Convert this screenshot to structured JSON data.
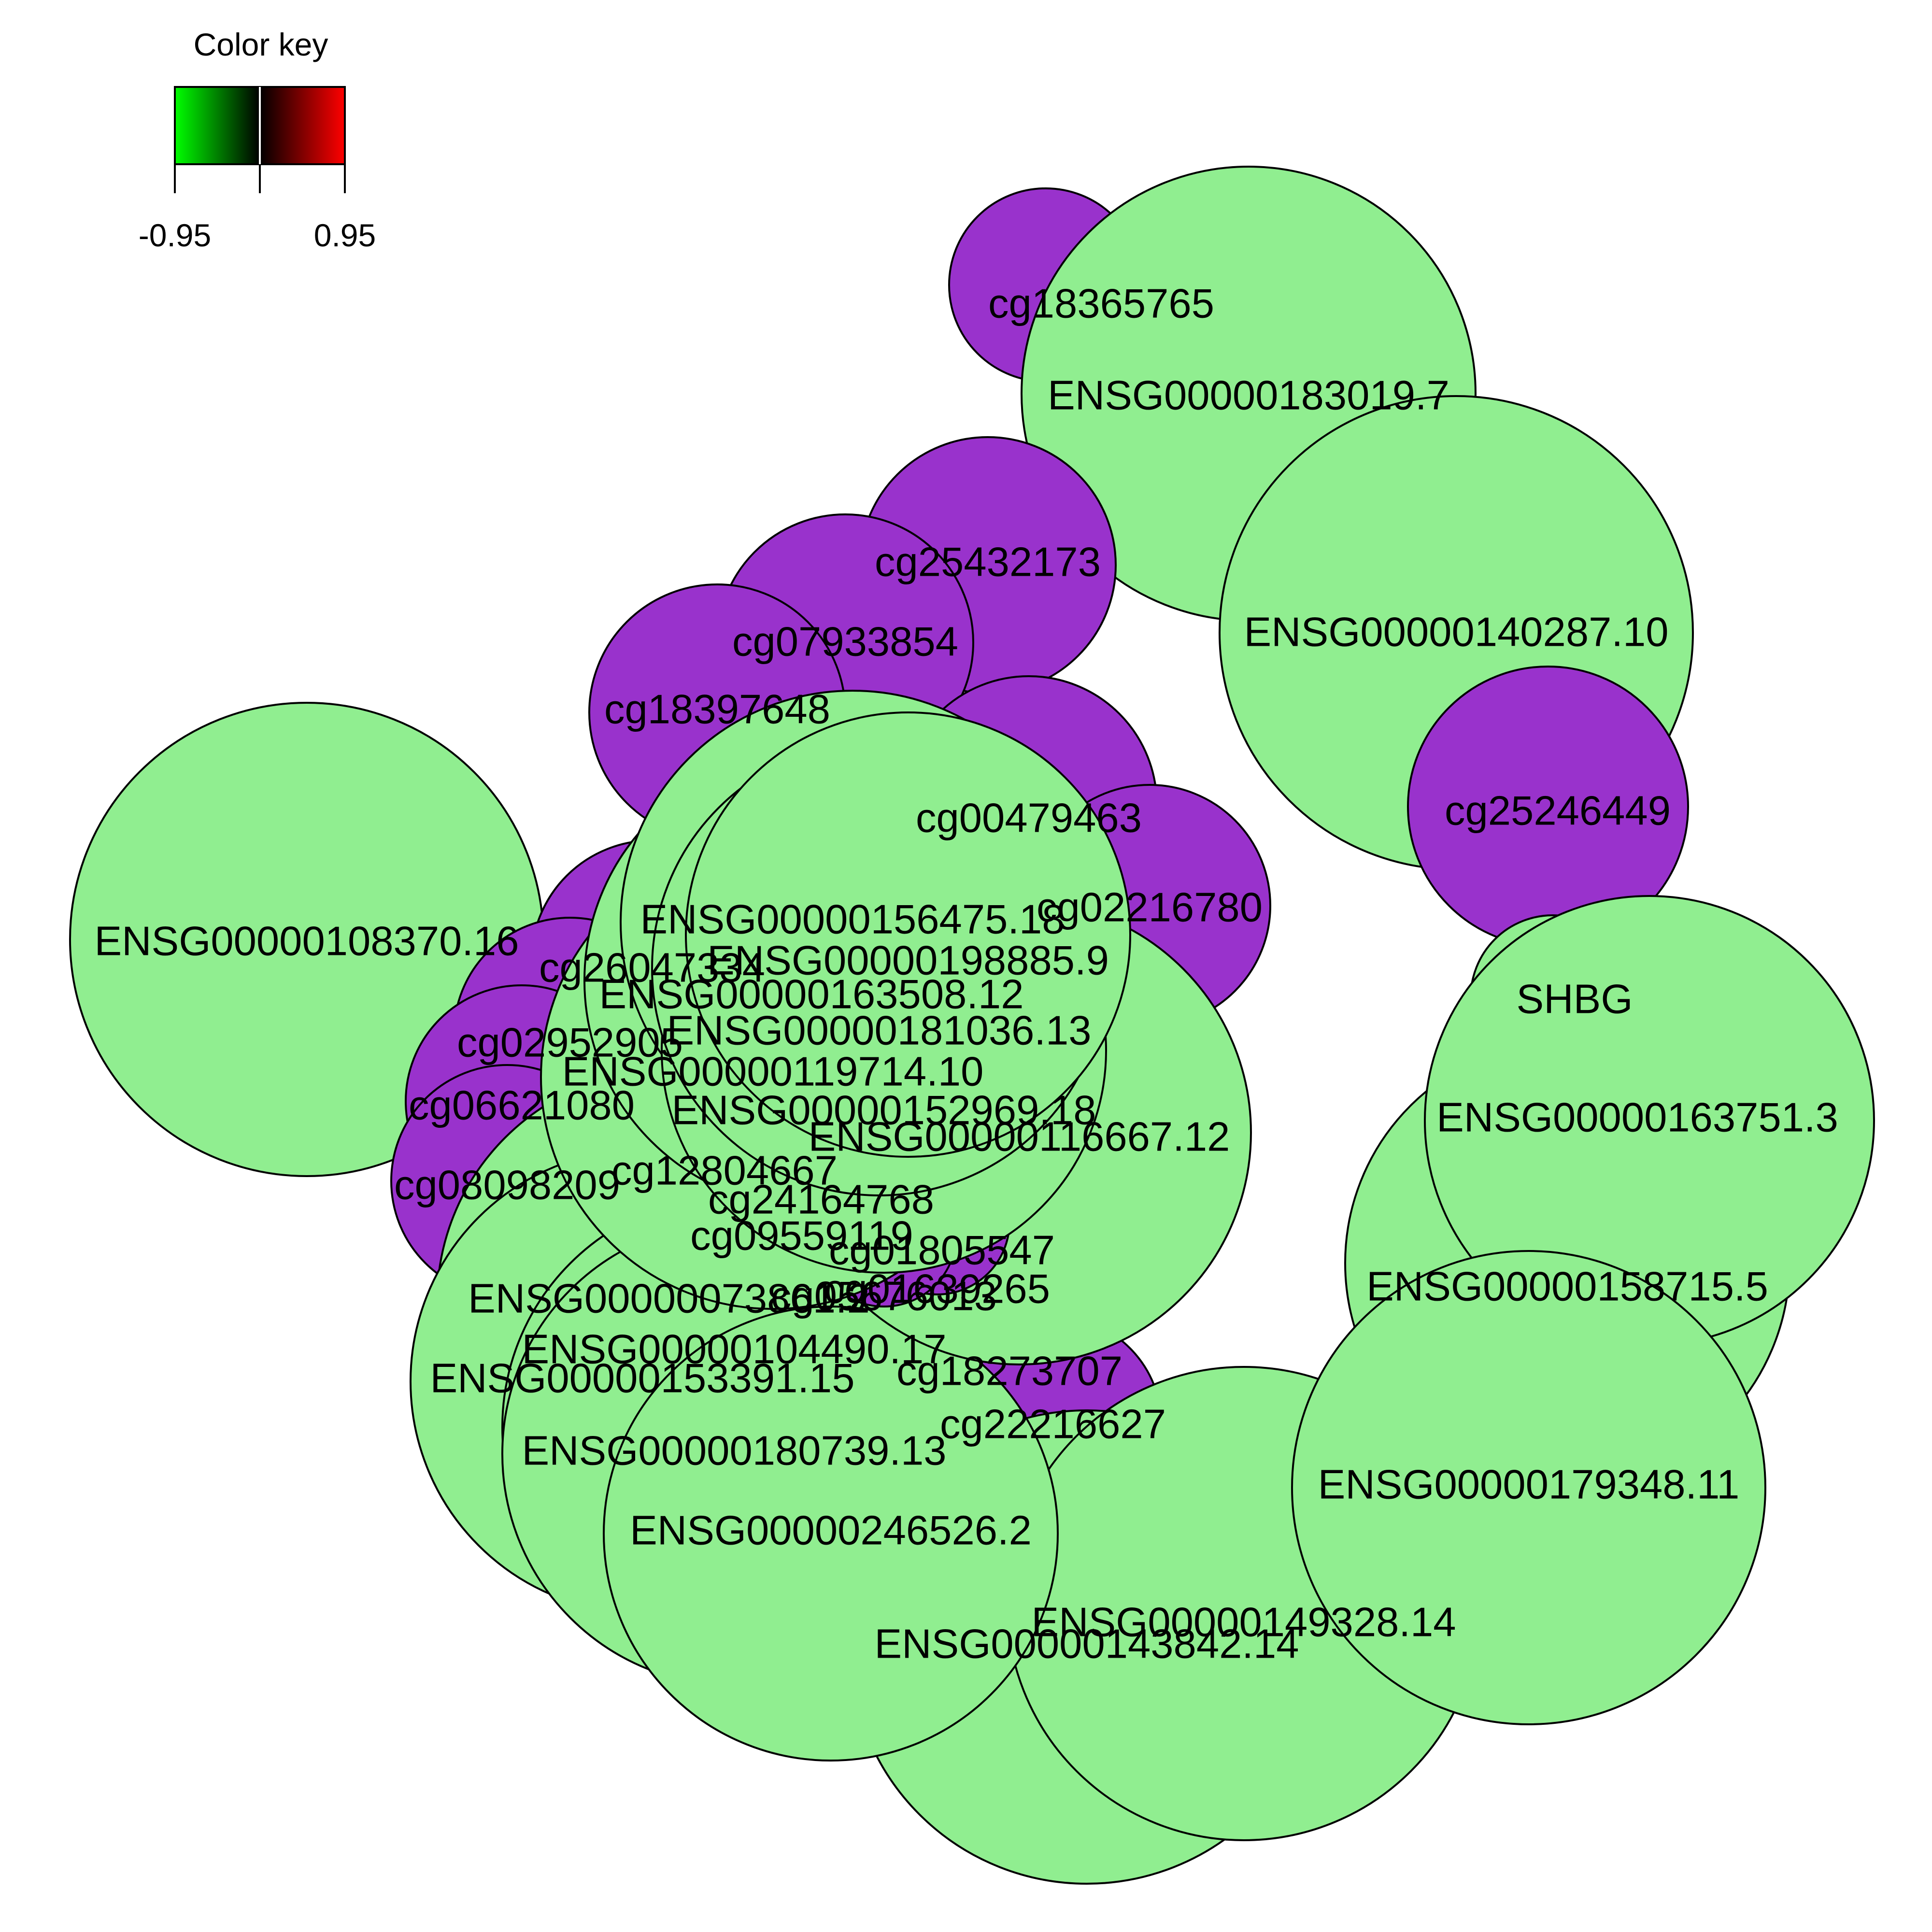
{
  "colors": {
    "gene_node": "#90EE90",
    "cpg_node": "#9932CC",
    "node_outline": "#000000",
    "key_low": "#00FF00",
    "key_mid": "#000000",
    "key_high": "#FF0000"
  },
  "color_key": {
    "title": "Color key",
    "min_label": "-0.95",
    "max_label": "0.95"
  },
  "nodes": [
    {
      "id": "cg18365765",
      "label": "cg18365765",
      "type": "cpg"
    },
    {
      "id": "cg25432173",
      "label": "cg25432173",
      "type": "cpg"
    },
    {
      "id": "cg07933854",
      "label": "cg07933854",
      "type": "cpg"
    },
    {
      "id": "cg18397648",
      "label": "cg18397648",
      "type": "cpg"
    },
    {
      "id": "cg00479463",
      "label": "cg00479463",
      "type": "cpg"
    },
    {
      "id": "cg02216780",
      "label": "cg02216780",
      "type": "cpg"
    },
    {
      "id": "cg25246449",
      "label": "cg25246449",
      "type": "cpg"
    },
    {
      "id": "cg26047334",
      "label": "cg26047334",
      "type": "cpg"
    },
    {
      "id": "cg02952905",
      "label": "cg02952905",
      "type": "cpg"
    },
    {
      "id": "cg06621080",
      "label": "cg06621080",
      "type": "cpg"
    },
    {
      "id": "cg08098209",
      "label": "cg08098209",
      "type": "cpg"
    },
    {
      "id": "cg12804667",
      "label": "cg12804667",
      "type": "cpg"
    },
    {
      "id": "cg24164768",
      "label": "cg24164768",
      "type": "cpg"
    },
    {
      "id": "cg09559119",
      "label": "cg09559119",
      "type": "cpg"
    },
    {
      "id": "cg01805547",
      "label": "cg01805547",
      "type": "cpg"
    },
    {
      "id": "cg05676013",
      "label": "cg05676013",
      "type": "cpg"
    },
    {
      "id": "cg01639265",
      "label": "cg01639265",
      "type": "cpg"
    },
    {
      "id": "cg15570258",
      "label": "cg15570258",
      "type": "cpg"
    },
    {
      "id": "cg18273707",
      "label": "cg18273707",
      "type": "cpg"
    },
    {
      "id": "cg22216627",
      "label": "cg22216627",
      "type": "cpg"
    },
    {
      "id": "SHBG",
      "label": "SHBG",
      "type": "gene"
    },
    {
      "id": "ENSG00000183019.7",
      "label": "ENSG00000183019.7",
      "type": "gene"
    },
    {
      "id": "ENSG00000140287.10",
      "label": "ENSG00000140287.10",
      "type": "gene"
    },
    {
      "id": "ENSG00000108370.16",
      "label": "ENSG00000108370.16",
      "type": "gene"
    },
    {
      "id": "ENSG00000156475.18",
      "label": "ENSG00000156475.18",
      "type": "gene"
    },
    {
      "id": "ENSG00000198885.9",
      "label": "ENSG00000198885.9",
      "type": "gene"
    },
    {
      "id": "ENSG00000163508.12",
      "label": "ENSG00000163508.12",
      "type": "gene"
    },
    {
      "id": "ENSG00000181036.13",
      "label": "ENSG00000181036.13",
      "type": "gene"
    },
    {
      "id": "ENSG00000119714.10",
      "label": "ENSG00000119714.10",
      "type": "gene"
    },
    {
      "id": "ENSG00000152969.18",
      "label": "ENSG00000152969.18",
      "type": "gene"
    },
    {
      "id": "ENSG00000116667.12",
      "label": "ENSG00000116667.12",
      "type": "gene"
    },
    {
      "id": "ENSG00000163751.3",
      "label": "ENSG00000163751.3",
      "type": "gene"
    },
    {
      "id": "ENSG00000158715.5",
      "label": "ENSG00000158715.5",
      "type": "gene"
    },
    {
      "id": "ENSG00000179348.11",
      "label": "ENSG00000179348.11",
      "type": "gene"
    },
    {
      "id": "ENSG00000073861.2",
      "label": "ENSG00000073861.2",
      "type": "gene"
    },
    {
      "id": "ENSG00000104490.17",
      "label": "ENSG00000104490.17",
      "type": "gene"
    },
    {
      "id": "ENSG00000153391.15",
      "label": "ENSG00000153391.15",
      "type": "gene"
    },
    {
      "id": "ENSG00000180739.13",
      "label": "ENSG00000180739.13",
      "type": "gene"
    },
    {
      "id": "ENSG00000246526.2",
      "label": "ENSG00000246526.2",
      "type": "gene"
    },
    {
      "id": "ENSG00000149328.14",
      "label": "ENSG00000149328.14",
      "type": "gene"
    },
    {
      "id": "ENSG00000143842.14",
      "label": "ENSG00000143842.14",
      "type": "gene"
    }
  ]
}
